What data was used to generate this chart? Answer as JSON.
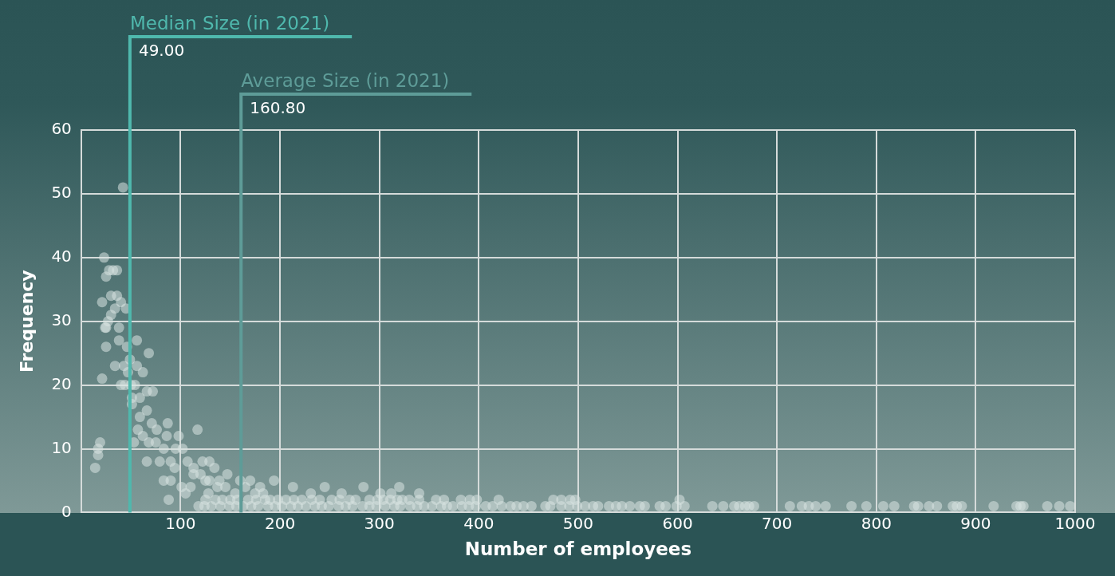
{
  "chart_data": {
    "type": "scatter",
    "xlabel": "Number of employees",
    "ylabel": "Frequency",
    "xlim": [
      0,
      1000
    ],
    "xticks": [
      100,
      200,
      300,
      400,
      500,
      600,
      700,
      800,
      900,
      1000
    ],
    "ylim": [
      0,
      60
    ],
    "yticks": [
      0,
      10,
      20,
      30,
      40,
      50,
      60
    ],
    "grid": true,
    "marker": "circle",
    "series": [
      {
        "color": "#d9e3e2",
        "x": [
          42,
          23,
          28,
          32,
          36,
          25,
          30,
          36,
          21,
          40,
          34,
          45,
          30,
          27,
          24,
          25,
          38,
          38,
          56,
          25,
          46,
          68,
          49,
          34,
          43,
          56,
          47,
          62,
          21,
          40,
          44,
          50,
          54,
          66,
          72,
          51,
          59,
          51,
          66,
          59,
          71,
          87,
          117,
          57,
          76,
          86,
          98,
          62,
          68,
          75,
          53,
          19,
          17,
          83,
          95,
          102,
          17,
          66,
          79,
          90,
          107,
          122,
          129,
          14,
          94,
          113,
          134,
          113,
          147,
          83,
          90,
          129,
          139,
          101,
          110,
          105,
          120,
          125,
          137,
          145,
          155,
          128,
          160,
          170,
          165,
          180,
          183,
          194,
          213,
          245,
          284,
          320,
          312,
          340,
          175,
          231,
          262,
          301,
          88,
          125,
          135,
          142,
          150,
          157,
          168,
          176,
          185,
          190,
          198,
          206,
          214,
          222,
          232,
          240,
          252,
          260,
          270,
          276,
          290,
          298,
          304,
          311,
          318,
          323,
          330,
          340,
          357,
          365,
          382,
          391,
          398,
          420,
          475,
          483,
          492,
          497,
          602,
          118,
          124,
          131,
          140,
          149,
          156,
          163,
          171,
          178,
          188,
          195,
          202,
          211,
          218,
          226,
          235,
          242,
          249,
          259,
          266,
          273,
          283,
          290,
          297,
          306,
          315,
          321,
          331,
          338,
          345,
          353,
          362,
          368,
          374,
          383,
          390,
          397,
          407,
          414,
          423,
          432,
          438,
          445,
          453,
          467,
          472,
          483,
          491,
          499,
          507,
          515,
          520,
          531,
          538,
          544,
          552,
          562,
          567,
          582,
          588,
          599,
          607,
          635,
          646,
          657,
          662,
          668,
          672,
          677,
          713,
          725,
          732,
          739,
          749,
          775,
          790,
          807,
          818,
          838,
          842,
          853,
          861,
          877,
          881,
          886,
          918,
          941,
          945,
          948,
          972,
          984,
          995
        ],
        "values": [
          51,
          40,
          38,
          38,
          38,
          37,
          34,
          34,
          33,
          33,
          32,
          32,
          31,
          30,
          29,
          29,
          29,
          27,
          27,
          26,
          26,
          25,
          24,
          23,
          23,
          23,
          22,
          22,
          21,
          20,
          20,
          20,
          20,
          19,
          19,
          18,
          18,
          17,
          16,
          15,
          14,
          14,
          13,
          13,
          13,
          12,
          12,
          12,
          11,
          11,
          11,
          11,
          10,
          10,
          10,
          10,
          9,
          8,
          8,
          8,
          8,
          8,
          8,
          7,
          7,
          7,
          7,
          6,
          6,
          5,
          5,
          5,
          5,
          4,
          4,
          3,
          6,
          5,
          4,
          4,
          3,
          3,
          5,
          5,
          4,
          4,
          3,
          5,
          4,
          4,
          4,
          4,
          3,
          3,
          3,
          3,
          3,
          3,
          2,
          2,
          2,
          2,
          2,
          2,
          2,
          2,
          2,
          2,
          2,
          2,
          2,
          2,
          2,
          2,
          2,
          2,
          2,
          2,
          2,
          2,
          2,
          2,
          2,
          2,
          2,
          2,
          2,
          2,
          2,
          2,
          2,
          2,
          2,
          2,
          2,
          2,
          2,
          1,
          1,
          1,
          1,
          1,
          1,
          1,
          1,
          1,
          1,
          1,
          1,
          1,
          1,
          1,
          1,
          1,
          1,
          1,
          1,
          1,
          1,
          1,
          1,
          1,
          1,
          1,
          1,
          1,
          1,
          1,
          1,
          1,
          1,
          1,
          1,
          1,
          1,
          1,
          1,
          1,
          1,
          1,
          1,
          1,
          1,
          1,
          1,
          1,
          1,
          1,
          1,
          1,
          1,
          1,
          1,
          1,
          1,
          1,
          1,
          1,
          1,
          1,
          1,
          1,
          1,
          1,
          1,
          1,
          1,
          1,
          1,
          1,
          1,
          1,
          1,
          1,
          1,
          1,
          1,
          1,
          1,
          1,
          1,
          1,
          1,
          1,
          1,
          1,
          1,
          1,
          1
        ]
      }
    ],
    "ref_lines": [
      {
        "axis": "x",
        "value": 49,
        "label": "Median Size (in 2021)",
        "color": "#4fb8ad"
      },
      {
        "axis": "x",
        "value": 160.8,
        "label": "Average Size (in 2021)",
        "color": "#5e9c98"
      }
    ],
    "annotations": [
      "49.00",
      "160.80"
    ]
  }
}
